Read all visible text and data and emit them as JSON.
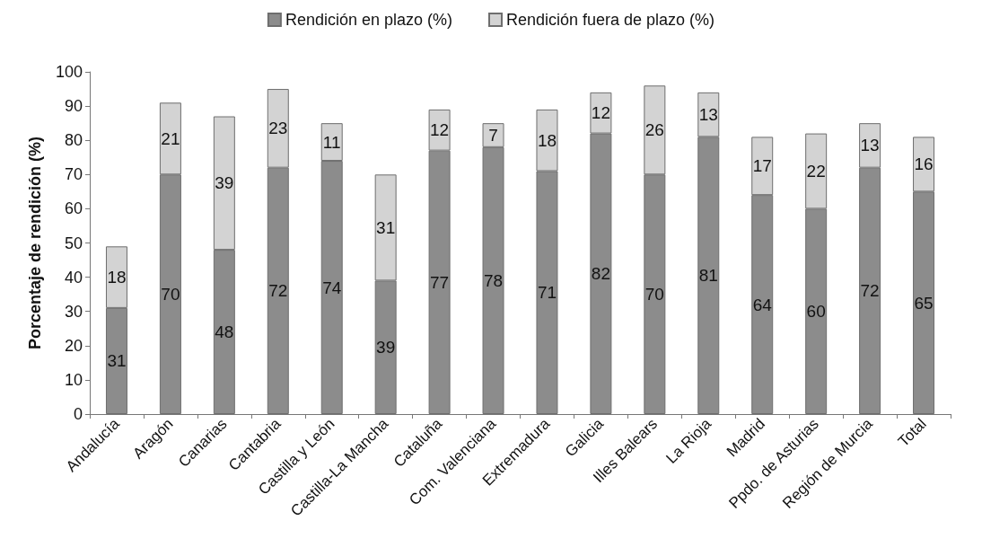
{
  "chart_data": {
    "type": "bar",
    "stacked": true,
    "ylabel": "Porcentaje de rendición (%)",
    "categories": [
      "Andalucía",
      "Aragón",
      "Canarias",
      "Cantabria",
      "Castilla y León",
      "Castilla-La Mancha",
      "Cataluña",
      "Com. Valenciana",
      "Extremadura",
      "Galicia",
      "Illes Balears",
      "La Rioja",
      "Madrid",
      "Ppdo. de Asturias",
      "Región de Murcia",
      "Total"
    ],
    "series": [
      {
        "name": "Rendición en plazo (%)",
        "color": "#8c8c8c",
        "values": [
          31,
          70,
          48,
          72,
          74,
          39,
          77,
          78,
          71,
          82,
          70,
          81,
          64,
          60,
          72,
          65
        ]
      },
      {
        "name": "Rendición fuera de plazo (%)",
        "color": "#d3d3d3",
        "values": [
          18,
          21,
          39,
          23,
          11,
          31,
          12,
          7,
          18,
          12,
          26,
          13,
          17,
          22,
          13,
          16
        ]
      }
    ],
    "ylim": [
      0,
      100
    ],
    "yticks": [
      0,
      10,
      20,
      30,
      40,
      50,
      60,
      70,
      80,
      90,
      100
    ],
    "grid": false,
    "legend": "top",
    "data_labels": true
  }
}
